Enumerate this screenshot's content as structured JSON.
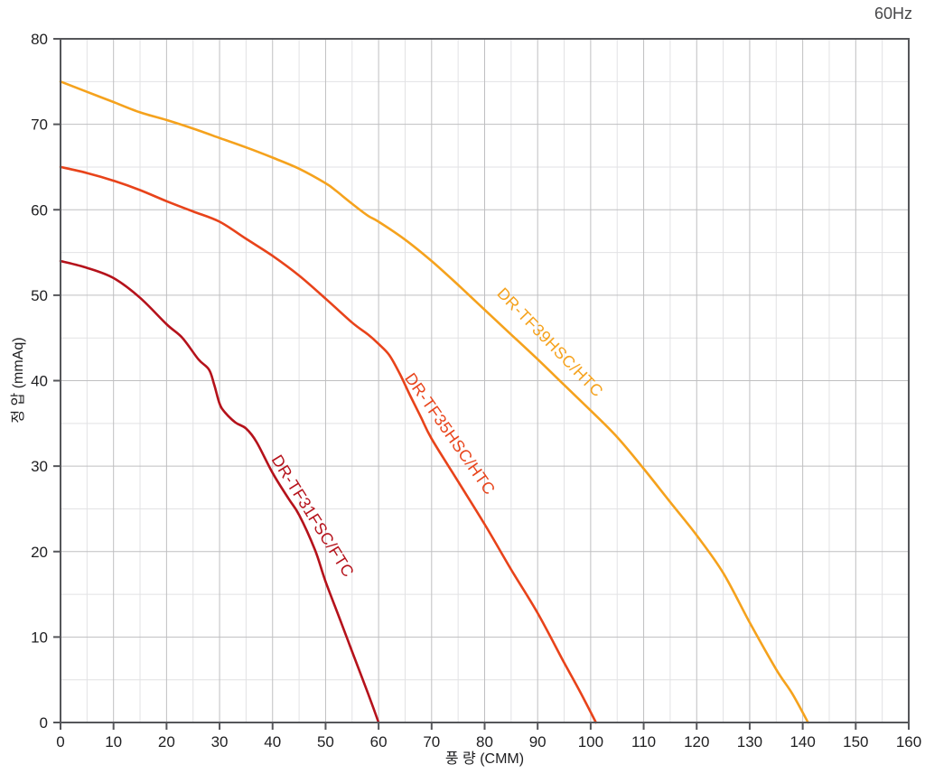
{
  "header": {
    "frequency_label": "60Hz"
  },
  "axes": {
    "x_title": "풍 량 (CMM)",
    "y_title": "정 압 (mmAq)"
  },
  "chart_data": {
    "type": "line",
    "title": "",
    "xlabel": "풍 량 (CMM)",
    "ylabel": "정 압 (mmAq)",
    "xlim": [
      0,
      160
    ],
    "ylim": [
      0,
      80
    ],
    "x_major_step": 10,
    "x_minor_step": 5,
    "y_major_step": 10,
    "y_minor_step": 5,
    "xticks": [
      0,
      10,
      20,
      30,
      40,
      50,
      60,
      70,
      80,
      90,
      100,
      110,
      120,
      130,
      140,
      150,
      160
    ],
    "yticks": [
      0,
      10,
      20,
      30,
      40,
      50,
      60,
      70,
      80
    ],
    "grid": true,
    "legend_position": "labels-on-curves",
    "colors": {
      "background": "#ffffff",
      "grid_major": "#bfbfc1",
      "grid_minor": "#e2e2e4",
      "axis_border": "#55565a",
      "tick_text": "#1f1f21",
      "header_text": "#48484a"
    },
    "series": [
      {
        "name": "DR-TF31FSC/FTC",
        "color": "#b5121b",
        "label_anchor": {
          "x": 47.4,
          "y": 24.1,
          "angle": 58
        },
        "points": [
          [
            0,
            54
          ],
          [
            5,
            53.2
          ],
          [
            10,
            52
          ],
          [
            15,
            49.7
          ],
          [
            20,
            46.6
          ],
          [
            23,
            45
          ],
          [
            26,
            42.5
          ],
          [
            28,
            41.3
          ],
          [
            29,
            39.5
          ],
          [
            30,
            37.3
          ],
          [
            31,
            36.3
          ],
          [
            33,
            35.1
          ],
          [
            35,
            34.4
          ],
          [
            37,
            32.8
          ],
          [
            40,
            29.2
          ],
          [
            43,
            26.2
          ],
          [
            45,
            24.3
          ],
          [
            48,
            20.2
          ],
          [
            50,
            16.5
          ],
          [
            53,
            11.6
          ],
          [
            55,
            8.3
          ],
          [
            58,
            3.4
          ],
          [
            60,
            0
          ]
        ]
      },
      {
        "name": "DR-TF35HSC/HTC",
        "color": "#e8431a",
        "label_anchor": {
          "x": 73.3,
          "y": 33.7,
          "angle": 55
        },
        "points": [
          [
            0,
            65
          ],
          [
            5,
            64.3
          ],
          [
            10,
            63.4
          ],
          [
            15,
            62.3
          ],
          [
            20,
            61
          ],
          [
            25,
            59.8
          ],
          [
            30,
            58.6
          ],
          [
            35,
            56.6
          ],
          [
            40,
            54.6
          ],
          [
            45,
            52.3
          ],
          [
            50,
            49.6
          ],
          [
            55,
            46.8
          ],
          [
            58,
            45.4
          ],
          [
            60,
            44.3
          ],
          [
            62,
            43
          ],
          [
            64,
            40.8
          ],
          [
            66,
            38.2
          ],
          [
            68,
            35.7
          ],
          [
            70,
            33.2
          ],
          [
            75,
            28.2
          ],
          [
            80,
            23.2
          ],
          [
            85,
            17.9
          ],
          [
            90,
            12.8
          ],
          [
            95,
            7
          ],
          [
            98,
            3.6
          ],
          [
            101,
            0
          ]
        ]
      },
      {
        "name": "DR-TF39HSC/HTC",
        "color": "#f5a21d",
        "label_anchor": {
          "x": 92.2,
          "y": 44.4,
          "angle": 46
        },
        "points": [
          [
            0,
            75
          ],
          [
            5,
            73.8
          ],
          [
            10,
            72.6
          ],
          [
            15,
            71.4
          ],
          [
            20,
            70.5
          ],
          [
            25,
            69.5
          ],
          [
            30,
            68.4
          ],
          [
            35,
            67.3
          ],
          [
            40,
            66.1
          ],
          [
            45,
            64.8
          ],
          [
            50,
            63.1
          ],
          [
            52,
            62.2
          ],
          [
            55,
            60.7
          ],
          [
            58,
            59.3
          ],
          [
            60,
            58.6
          ],
          [
            65,
            56.5
          ],
          [
            70,
            54
          ],
          [
            75,
            51.2
          ],
          [
            80,
            48.3
          ],
          [
            85,
            45.4
          ],
          [
            90,
            42.5
          ],
          [
            95,
            39.5
          ],
          [
            100,
            36.5
          ],
          [
            105,
            33.4
          ],
          [
            110,
            29.7
          ],
          [
            115,
            25.8
          ],
          [
            120,
            21.9
          ],
          [
            125,
            17.5
          ],
          [
            130,
            11.7
          ],
          [
            135,
            6.2
          ],
          [
            138,
            3.4
          ],
          [
            141,
            0
          ]
        ]
      }
    ]
  }
}
